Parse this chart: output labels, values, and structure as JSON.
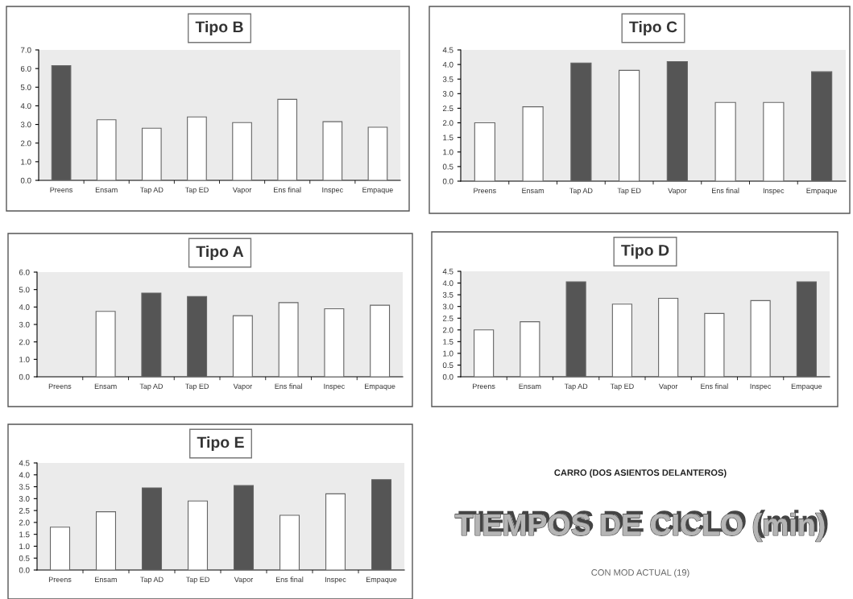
{
  "chart_data": [
    {
      "type": "bar",
      "title": "Tipo B",
      "categories": [
        "Preens",
        "Ensam",
        "Tap AD",
        "Tap ED",
        "Vapor",
        "Ens final",
        "Inspec",
        "Empaque"
      ],
      "values": [
        6.15,
        3.25,
        2.8,
        3.4,
        3.1,
        4.35,
        3.15,
        2.85
      ],
      "colors": [
        "#555555",
        "#ffffff",
        "#ffffff",
        "#ffffff",
        "#ffffff",
        "#ffffff",
        "#ffffff",
        "#ffffff"
      ],
      "ylim": [
        0,
        7
      ],
      "yticks": [
        {
          "value": 0,
          "label": "0.0"
        },
        {
          "value": 1,
          "label": "1.0"
        },
        {
          "value": 2,
          "label": "2.0"
        },
        {
          "value": 3,
          "label": "3.0"
        },
        {
          "value": 4,
          "label": "4.0"
        },
        {
          "value": 5,
          "label": "5.0"
        },
        {
          "value": 6,
          "label": "6.0"
        },
        {
          "value": 7,
          "label": "7.0"
        }
      ]
    },
    {
      "type": "bar",
      "title": "Tipo C",
      "categories": [
        "Preens",
        "Ensam",
        "Tap AD",
        "Tap ED",
        "Vapor",
        "Ens final",
        "Inspec",
        "Empaque"
      ],
      "values": [
        2.0,
        2.55,
        4.05,
        3.8,
        4.1,
        2.7,
        2.7,
        3.75
      ],
      "colors": [
        "#ffffff",
        "#ffffff",
        "#555555",
        "#ffffff",
        "#555555",
        "#ffffff",
        "#ffffff",
        "#555555"
      ],
      "ylim": [
        0,
        4.5
      ],
      "yticks": [
        {
          "value": 0,
          "label": "0.0"
        },
        0.5,
        {
          "value": 1,
          "label": "1.0"
        },
        1.5,
        {
          "value": 2,
          "label": "2.0"
        },
        2.5,
        {
          "value": 3,
          "label": "3.0"
        },
        3.5,
        {
          "value": 4,
          "label": "4.0"
        },
        4.5
      ]
    },
    {
      "type": "bar",
      "title": "Tipo A",
      "categories": [
        "Preens",
        "Ensam",
        "Tap AD",
        "Tap ED",
        "Vapor",
        "Ens final",
        "Inspec",
        "Empaque"
      ],
      "values": [
        null,
        3.75,
        4.8,
        4.6,
        3.5,
        4.25,
        3.9,
        4.1
      ],
      "colors": [
        "#ffffff",
        "#ffffff",
        "#555555",
        "#555555",
        "#ffffff",
        "#ffffff",
        "#ffffff",
        "#ffffff"
      ],
      "ylim": [
        0,
        6
      ],
      "yticks": [
        {
          "value": 0,
          "label": "0.0"
        },
        {
          "value": 1,
          "label": "1.0"
        },
        {
          "value": 2,
          "label": "2.0"
        },
        {
          "value": 3,
          "label": "3.0"
        },
        {
          "value": 4,
          "label": "4.0"
        },
        {
          "value": 5,
          "label": "5.0"
        },
        {
          "value": 6,
          "label": "6.0"
        }
      ]
    },
    {
      "type": "bar",
      "title": "Tipo D",
      "categories": [
        "Preens",
        "Ensam",
        "Tap AD",
        "Tap ED",
        "Vapor",
        "Ens final",
        "Inspec",
        "Empaque"
      ],
      "values": [
        2.0,
        2.35,
        4.05,
        3.1,
        3.35,
        2.7,
        3.25,
        4.05
      ],
      "colors": [
        "#ffffff",
        "#ffffff",
        "#555555",
        "#ffffff",
        "#ffffff",
        "#ffffff",
        "#ffffff",
        "#555555"
      ],
      "ylim": [
        0,
        4.5
      ],
      "yticks": [
        {
          "value": 0,
          "label": "0.0"
        },
        0.5,
        {
          "value": 1,
          "label": "1.0"
        },
        1.5,
        {
          "value": 2,
          "label": "2.0"
        },
        2.5,
        {
          "value": 3,
          "label": "3.0"
        },
        3.5,
        {
          "value": 4,
          "label": "4.0"
        },
        4.5
      ]
    },
    {
      "type": "bar",
      "title": "Tipo E",
      "categories": [
        "Preens",
        "Ensam",
        "Tap AD",
        "Tap ED",
        "Vapor",
        "Ens final",
        "Inspec",
        "Empaque"
      ],
      "values": [
        1.8,
        2.45,
        3.45,
        2.9,
        3.55,
        2.3,
        3.2,
        3.8
      ],
      "colors": [
        "#ffffff",
        "#ffffff",
        "#555555",
        "#ffffff",
        "#555555",
        "#ffffff",
        "#ffffff",
        "#555555"
      ],
      "ylim": [
        0,
        4.5
      ],
      "yticks": [
        {
          "value": 0,
          "label": "0.0"
        },
        0.5,
        {
          "value": 1,
          "label": "1.0"
        },
        1.5,
        {
          "value": 2,
          "label": "2.0"
        },
        2.5,
        {
          "value": 3,
          "label": "3.0"
        },
        3.5,
        {
          "value": 4,
          "label": "4.0"
        },
        4.5
      ]
    },
    {
      "type": "other",
      "title": "TIEMPOS DE CICLO (min)",
      "annotations": [
        "CARRO (DOS ASIENTOS DELANTEROS)",
        "CON MOD ACTUAL (19)"
      ]
    }
  ]
}
